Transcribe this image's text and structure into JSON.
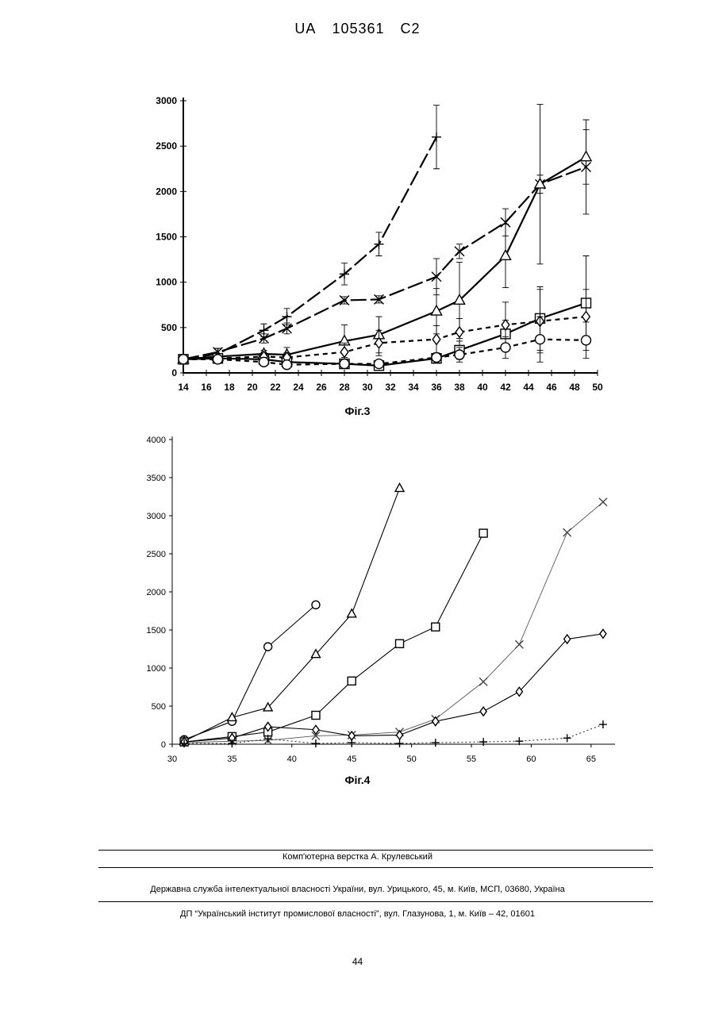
{
  "header": {
    "country": "UA",
    "number": "105361",
    "kind": "C2"
  },
  "chart_data": [
    {
      "type": "line",
      "caption": "Фіг.3",
      "xlim": [
        14,
        50
      ],
      "ylim": [
        0,
        3000
      ],
      "xticks": [
        14,
        16,
        18,
        20,
        22,
        24,
        26,
        28,
        30,
        32,
        34,
        36,
        38,
        40,
        42,
        44,
        46,
        48,
        50
      ],
      "yticks": [
        0,
        500,
        1000,
        1500,
        2000,
        2500,
        3000
      ],
      "grid": false,
      "series": [
        {
          "marker": "plus",
          "line": "long-dash",
          "points": [
            [
              14,
              150
            ],
            [
              17,
              210
            ],
            [
              21,
              470
            ],
            [
              23,
              620
            ],
            [
              28,
              1090
            ],
            [
              31,
              1420
            ],
            [
              36,
              2600
            ]
          ],
          "err": [
            0,
            60,
            70,
            90,
            120,
            130,
            350
          ]
        },
        {
          "marker": "x",
          "line": "long-dash",
          "points": [
            [
              14,
              150
            ],
            [
              17,
              230
            ],
            [
              21,
              380
            ],
            [
              23,
              490
            ],
            [
              28,
              800
            ],
            [
              31,
              810
            ],
            [
              36,
              1060
            ],
            [
              38,
              1340
            ],
            [
              42,
              1660
            ],
            [
              45,
              2080
            ],
            [
              49,
              2270
            ]
          ],
          "err": [
            0,
            40,
            50,
            60,
            40,
            40,
            200,
            80,
            150,
            100,
            520
          ]
        },
        {
          "marker": "triangle",
          "line": "solid",
          "points": [
            [
              14,
              150
            ],
            [
              17,
              180
            ],
            [
              21,
              210
            ],
            [
              23,
              200
            ],
            [
              28,
              350
            ],
            [
              31,
              420
            ],
            [
              36,
              680
            ],
            [
              38,
              800
            ],
            [
              42,
              1290
            ],
            [
              45,
              2080
            ],
            [
              49,
              2380
            ]
          ],
          "err": [
            0,
            30,
            40,
            80,
            180,
            200,
            250,
            420,
            350,
            880,
            300
          ]
        },
        {
          "marker": "square",
          "line": "solid",
          "points": [
            [
              14,
              150
            ],
            [
              17,
              160
            ],
            [
              21,
              150
            ],
            [
              23,
              120
            ],
            [
              28,
              100
            ],
            [
              31,
              80
            ],
            [
              36,
              160
            ],
            [
              38,
              250
            ],
            [
              42,
              430
            ],
            [
              45,
              600
            ],
            [
              49,
              770
            ]
          ],
          "err": [
            0,
            20,
            30,
            30,
            20,
            20,
            50,
            100,
            150,
            350,
            520
          ]
        },
        {
          "marker": "diamond",
          "line": "dash",
          "points": [
            [
              14,
              150
            ],
            [
              17,
              160
            ],
            [
              21,
              180
            ],
            [
              23,
              170
            ],
            [
              28,
              230
            ],
            [
              31,
              330
            ],
            [
              36,
              370
            ],
            [
              38,
              450
            ],
            [
              42,
              530
            ],
            [
              45,
              570
            ],
            [
              49,
              620
            ]
          ],
          "err": [
            0,
            20,
            40,
            50,
            100,
            140,
            150,
            150,
            250,
            350,
            300
          ]
        },
        {
          "marker": "circle",
          "line": "dash",
          "points": [
            [
              14,
              150
            ],
            [
              17,
              150
            ],
            [
              21,
              120
            ],
            [
              23,
              90
            ],
            [
              28,
              100
            ],
            [
              31,
              100
            ],
            [
              36,
              170
            ],
            [
              38,
              200
            ],
            [
              42,
              280
            ],
            [
              45,
              370
            ],
            [
              49,
              360
            ]
          ],
          "err": [
            0,
            20,
            20,
            30,
            20,
            40,
            50,
            80,
            120,
            250,
            200
          ]
        }
      ]
    },
    {
      "type": "line",
      "caption": "Фіг.4",
      "xlim": [
        30,
        67
      ],
      "ylim": [
        0,
        4000
      ],
      "xticks": [
        30,
        35,
        40,
        45,
        50,
        55,
        60,
        65
      ],
      "yticks": [
        0,
        500,
        1000,
        1500,
        2000,
        2500,
        3000,
        3500,
        4000
      ],
      "grid": false,
      "series": [
        {
          "marker": "circle",
          "line": "solid",
          "points": [
            [
              31,
              60
            ],
            [
              35,
              300
            ],
            [
              38,
              1280
            ],
            [
              42,
              1830
            ]
          ]
        },
        {
          "marker": "triangle",
          "line": "solid",
          "points": [
            [
              31,
              40
            ],
            [
              35,
              350
            ],
            [
              38,
              480
            ],
            [
              42,
              1180
            ],
            [
              45,
              1710
            ],
            [
              49,
              3360
            ]
          ]
        },
        {
          "marker": "square",
          "line": "solid",
          "points": [
            [
              31,
              30
            ],
            [
              35,
              100
            ],
            [
              38,
              160
            ],
            [
              42,
              380
            ],
            [
              45,
              830
            ],
            [
              49,
              1320
            ],
            [
              52,
              1540
            ],
            [
              56,
              2770
            ]
          ]
        },
        {
          "marker": "x",
          "line": "thin",
          "points": [
            [
              31,
              20
            ],
            [
              35,
              40
            ],
            [
              38,
              50
            ],
            [
              42,
              110
            ],
            [
              45,
              120
            ],
            [
              49,
              160
            ],
            [
              52,
              330
            ],
            [
              56,
              820
            ],
            [
              59,
              1310
            ],
            [
              63,
              2780
            ],
            [
              66,
              3180
            ]
          ]
        },
        {
          "marker": "diamond",
          "line": "solid",
          "points": [
            [
              31,
              30
            ],
            [
              35,
              80
            ],
            [
              38,
              230
            ],
            [
              42,
              190
            ],
            [
              45,
              110
            ],
            [
              49,
              120
            ],
            [
              52,
              300
            ],
            [
              56,
              430
            ],
            [
              59,
              690
            ],
            [
              63,
              1380
            ],
            [
              66,
              1450
            ]
          ]
        },
        {
          "marker": "plus",
          "line": "dotted",
          "points": [
            [
              31,
              10
            ],
            [
              35,
              10
            ],
            [
              38,
              70
            ],
            [
              42,
              10
            ],
            [
              45,
              20
            ],
            [
              49,
              10
            ],
            [
              52,
              20
            ],
            [
              56,
              30
            ],
            [
              59,
              40
            ],
            [
              63,
              80
            ],
            [
              66,
              260
            ]
          ]
        }
      ]
    }
  ],
  "footer": {
    "layout": "Комп'ютерна верстка А. Крулевський",
    "service": "Державна служба інтелектуальної власності України, вул. Урицького, 45, м. Київ, МСП, 03680, Україна",
    "institute": "ДП “Український інститут промислової власності”, вул. Глазунова, 1, м. Київ – 42, 01601",
    "page": "44"
  }
}
